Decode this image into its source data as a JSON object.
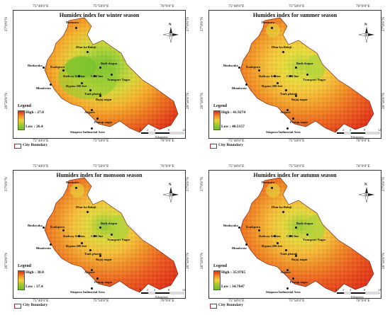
{
  "coordinates": {
    "top": [
      "75°40'0\"E",
      "75°50'0\"E",
      "76°0'0\"E"
    ],
    "bottom": [
      "75°40'0\"E",
      "75°50'0\"E",
      "76°0'0\"E"
    ],
    "left": [
      "27°0'0\"N",
      "26°50'0\"N"
    ],
    "right": [
      "27°0'0\"N",
      "26°50'0\"N"
    ]
  },
  "legend": {
    "title": "Legend",
    "boundary_label": "City Boundary"
  },
  "scale": {
    "ticks": [
      "0",
      "2",
      "4",
      "8",
      "12"
    ],
    "unit": "Kilometers"
  },
  "north_label": "N",
  "places": [
    {
      "name": "Harmara"
    },
    {
      "name": "Dhar ka Balaji"
    },
    {
      "name": "Bindayaka"
    },
    {
      "name": "Kankpura"
    },
    {
      "name": "Badi chopar"
    },
    {
      "name": "Railway Station"
    },
    {
      "name": "Civil line"
    },
    {
      "name": "Transport Nagar"
    },
    {
      "name": "Bypass 200 feet"
    },
    {
      "name": "Bhankrota"
    },
    {
      "name": "Tonk phatak"
    },
    {
      "name": "Bajaj nagar"
    },
    {
      "name": "Airport"
    },
    {
      "name": "Pratap nagar"
    },
    {
      "name": "Sitapura Indiustrial Area"
    }
  ],
  "maps": [
    {
      "title": "Humidex index for winter season",
      "high": "High : 27.8",
      "low": "Low : 26.4",
      "season": "winter"
    },
    {
      "title": "Humidex index for summer season",
      "high": "High : 41.9274",
      "low": "Low : 40.5157",
      "season": "summer"
    },
    {
      "title": "Humidex index for monsoon season",
      "high": "High : 38.8",
      "low": "Low : 37.4",
      "season": "monsoon"
    },
    {
      "title": "Humidex index for autumn season",
      "high": "High : 35.9765",
      "low": "Low : 34.7647",
      "season": "autumn"
    }
  ],
  "colors": {
    "high": "#e0281a",
    "mid_high": "#f08a22",
    "mid": "#f5d23a",
    "low": "#6fbf2b",
    "boundary": "#c02020"
  }
}
